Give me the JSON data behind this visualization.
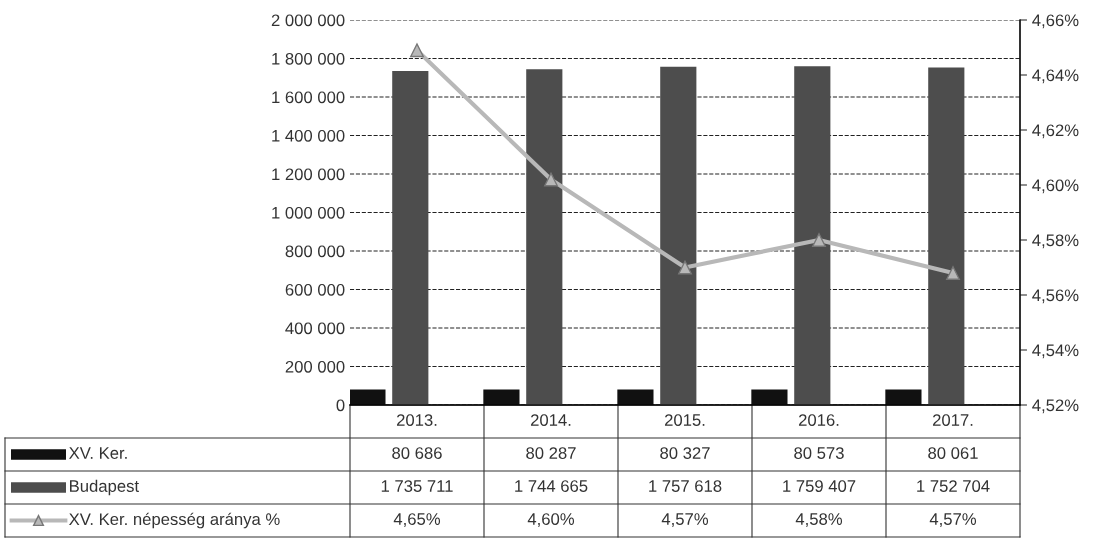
{
  "chart_data": {
    "type": "bar",
    "categories": [
      "2013.",
      "2014.",
      "2015.",
      "2016.",
      "2017."
    ],
    "series": [
      {
        "name": "XV. Ker.",
        "color": "#111111",
        "values": [
          80686,
          80287,
          80327,
          80573,
          80061
        ],
        "value_labels": [
          "80 686",
          "80 287",
          "80 327",
          "80 573",
          "80 061"
        ]
      },
      {
        "name": "Budapest",
        "color": "#4d4d4d",
        "values": [
          1735711,
          1744665,
          1757618,
          1759407,
          1752704
        ],
        "value_labels": [
          "1 735 711",
          "1 744 665",
          "1 757 618",
          "1 759 407",
          "1 752 704"
        ]
      },
      {
        "name": "XV. Ker. népesség aránya %",
        "type": "line",
        "axis": "y2",
        "color": "#b8b8b8",
        "marker": "triangle",
        "values": [
          4.649,
          4.602,
          4.57,
          4.58,
          4.568
        ],
        "value_labels": [
          "4,65%",
          "4,60%",
          "4,57%",
          "4,58%",
          "4,57%"
        ]
      }
    ],
    "ylim": [
      0,
      2000000
    ],
    "yticks": [
      0,
      {
        "value": 200000,
        "label": "200 000"
      },
      {
        "value": 400000,
        "label": "400 000"
      },
      {
        "value": 600000,
        "label": "600 000"
      },
      {
        "value": 800000,
        "label": "800 000"
      },
      {
        "value": 1000000,
        "label": "1 000 000"
      },
      {
        "value": 1200000,
        "label": "1 200 000"
      },
      {
        "value": 1400000,
        "label": "1 400 000"
      },
      {
        "value": 1600000,
        "label": "1 600 000"
      },
      {
        "value": 1800000,
        "label": "1 800 000"
      },
      {
        "value": 2000000,
        "label": "2 000 000"
      }
    ],
    "y2lim": [
      4.52,
      4.66
    ],
    "y2ticks": [
      {
        "value": 4.52,
        "label": "4,52%"
      },
      {
        "value": 4.54,
        "label": "4,54%"
      },
      {
        "value": 4.56,
        "label": "4,56%"
      },
      {
        "value": 4.58,
        "label": "4,58%"
      },
      {
        "value": 4.6,
        "label": "4,60%"
      },
      {
        "value": 4.62,
        "label": "4,62%"
      },
      {
        "value": 4.64,
        "label": "4,64%"
      },
      {
        "value": 4.66,
        "label": "4,66%"
      }
    ],
    "grid": "y",
    "legend": "bottom left"
  }
}
